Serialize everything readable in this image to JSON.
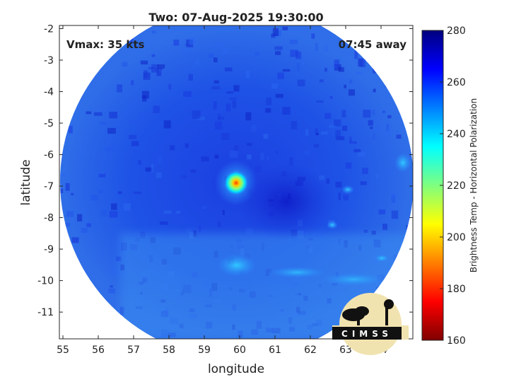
{
  "chart_data": {
    "type": "heatmap",
    "title": "Two: 07-Aug-2025 19:30:00",
    "xlabel": "longitude",
    "ylabel": "latitude",
    "xlim": [
      54.9,
      64.9
    ],
    "ylim": [
      -11.85,
      -1.9
    ],
    "x_ticks": [
      55,
      56,
      57,
      58,
      59,
      60,
      61,
      62,
      63,
      64
    ],
    "y_ticks": [
      -2,
      -3,
      -4,
      -5,
      -6,
      -7,
      -8,
      -9,
      -10,
      -11
    ],
    "annotations": {
      "left": "Vmax: 35 kts",
      "right": "07:45 away"
    },
    "colorbar": {
      "label": "Brightness Temp - Horizontal Polarization",
      "range": [
        160,
        280
      ],
      "ticks": [
        280,
        260,
        240,
        220,
        200,
        180,
        160
      ]
    },
    "swath_center": [
      59.92,
      -6.85
    ],
    "swath_radius_deg": 5.0,
    "cold_core": {
      "lon": 59.9,
      "lat": -6.9,
      "min_value": 190
    },
    "grid": false,
    "logo_text": "CIMSS"
  },
  "colors": {
    "background": "#ffffff",
    "axis": "#262626",
    "colormap": [
      "#7f0000",
      "#ff0000",
      "#ff7f00",
      "#ffff00",
      "#7fff7f",
      "#00ffff",
      "#007fff",
      "#0000ff",
      "#00007f"
    ]
  }
}
